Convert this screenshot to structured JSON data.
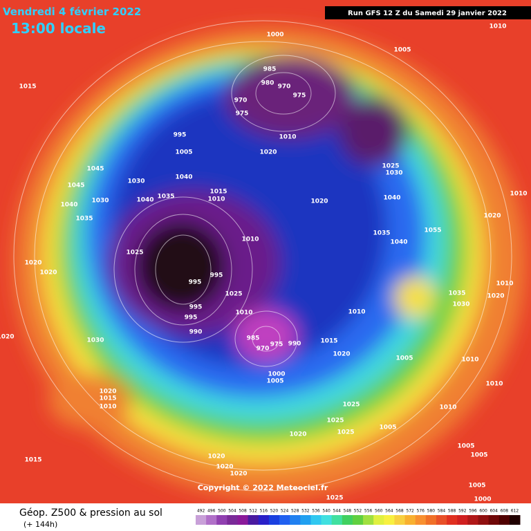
{
  "header": {
    "date": "Vendredi 4 février 2022",
    "time": "13:00 locale",
    "run": "Run GFS 12 Z du Samedi 29 janvier 2022"
  },
  "map": {
    "isobar_labels": [
      1000,
      1010,
      1005,
      1015,
      985,
      980,
      970,
      975,
      970,
      975,
      995,
      1005,
      1020,
      1010,
      1025,
      1030,
      1045,
      1045,
      1030,
      1040,
      1015,
      1010,
      1040,
      1035,
      1040,
      1030,
      1035,
      1020,
      1040,
      1010,
      1020,
      1035,
      1040,
      1055,
      1010,
      1025,
      1020,
      1020,
      995,
      995,
      1025,
      995,
      995,
      990,
      1010,
      1010,
      1035,
      1030,
      1010,
      1020,
      1030,
      985,
      970,
      975,
      990,
      1015,
      1020,
      1005,
      1010,
      1020,
      1000,
      1005,
      1020,
      1015,
      1010,
      1025,
      1025,
      1025,
      1005,
      1010,
      1020,
      1005,
      1005,
      1010,
      1015,
      1020,
      1020,
      1020,
      1025,
      1000,
      1005
    ],
    "copyright": "Copyright © 2022 Meteociel.fr"
  },
  "footer": {
    "title": "Géop. Z500 & pression au sol",
    "lead": "(+ 144h)",
    "scale": {
      "labels": [
        492,
        496,
        500,
        504,
        508,
        512,
        516,
        520,
        524,
        528,
        532,
        536,
        540,
        544,
        548,
        552,
        556,
        560,
        564,
        568,
        572,
        576,
        580,
        584,
        588,
        592,
        596,
        600,
        604,
        608,
        612
      ],
      "colors": [
        "#c8a0d8",
        "#b070c8",
        "#9040b0",
        "#7a2a98",
        "#8a1a9a",
        "#4a1aa0",
        "#2a20c8",
        "#1a40e0",
        "#2060f0",
        "#2080f0",
        "#20a0f0",
        "#30c8f0",
        "#40e0e0",
        "#40e0a0",
        "#40d060",
        "#60d040",
        "#a0e040",
        "#e0f040",
        "#f8f040",
        "#f8d040",
        "#f8b030",
        "#f89030",
        "#f07028",
        "#e85028",
        "#e03020",
        "#d02020",
        "#b01818",
        "#901010",
        "#700808",
        "#500000",
        "#200000"
      ]
    }
  }
}
